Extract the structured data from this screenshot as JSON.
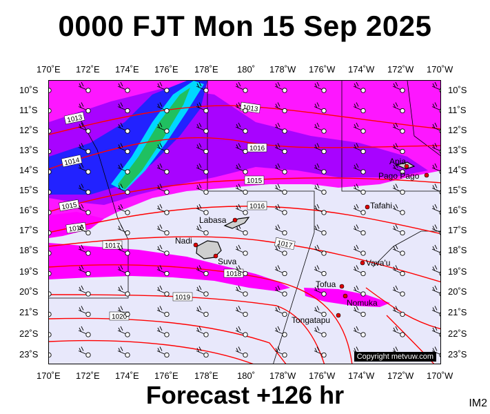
{
  "title": "0000 FJT Mon 15 Sep 2025",
  "footer": "Forecast +126 hr",
  "corner_label": "IM2",
  "copyright": "Copyright metvuw.com",
  "lon_labels": [
    "170˚E",
    "172˚E",
    "174˚E",
    "176˚E",
    "178˚E",
    "180˚",
    "178˚W",
    "176˚W",
    "174˚W",
    "172˚W",
    "170˚W"
  ],
  "lat_labels": [
    "10˚S",
    "11˚S",
    "12˚S",
    "13˚S",
    "14˚S",
    "15˚S",
    "16˚S",
    "17˚S",
    "18˚S",
    "19˚S",
    "20˚S",
    "21˚S",
    "22˚S",
    "23˚S"
  ],
  "isobar_labels": [
    "1013",
    "1013",
    "1014",
    "1016",
    "1015",
    "1015",
    "1016",
    "1016",
    "1017",
    "1017",
    "1018",
    "1019",
    "1020"
  ],
  "places": [
    "Apia",
    "Pago Pago",
    "Tafahi",
    "Labasa",
    "Nadi",
    "Suva",
    "Vava'u",
    "Tofua",
    "Nomuka",
    "Tongatapu"
  ],
  "colors": {
    "magenta": "#ff00ff",
    "purple": "#9900ff",
    "blue": "#2222ff",
    "cyan": "#00d8ff",
    "green": "#20c060",
    "isobar": "#ff0000",
    "background": "#e8e8fb"
  }
}
